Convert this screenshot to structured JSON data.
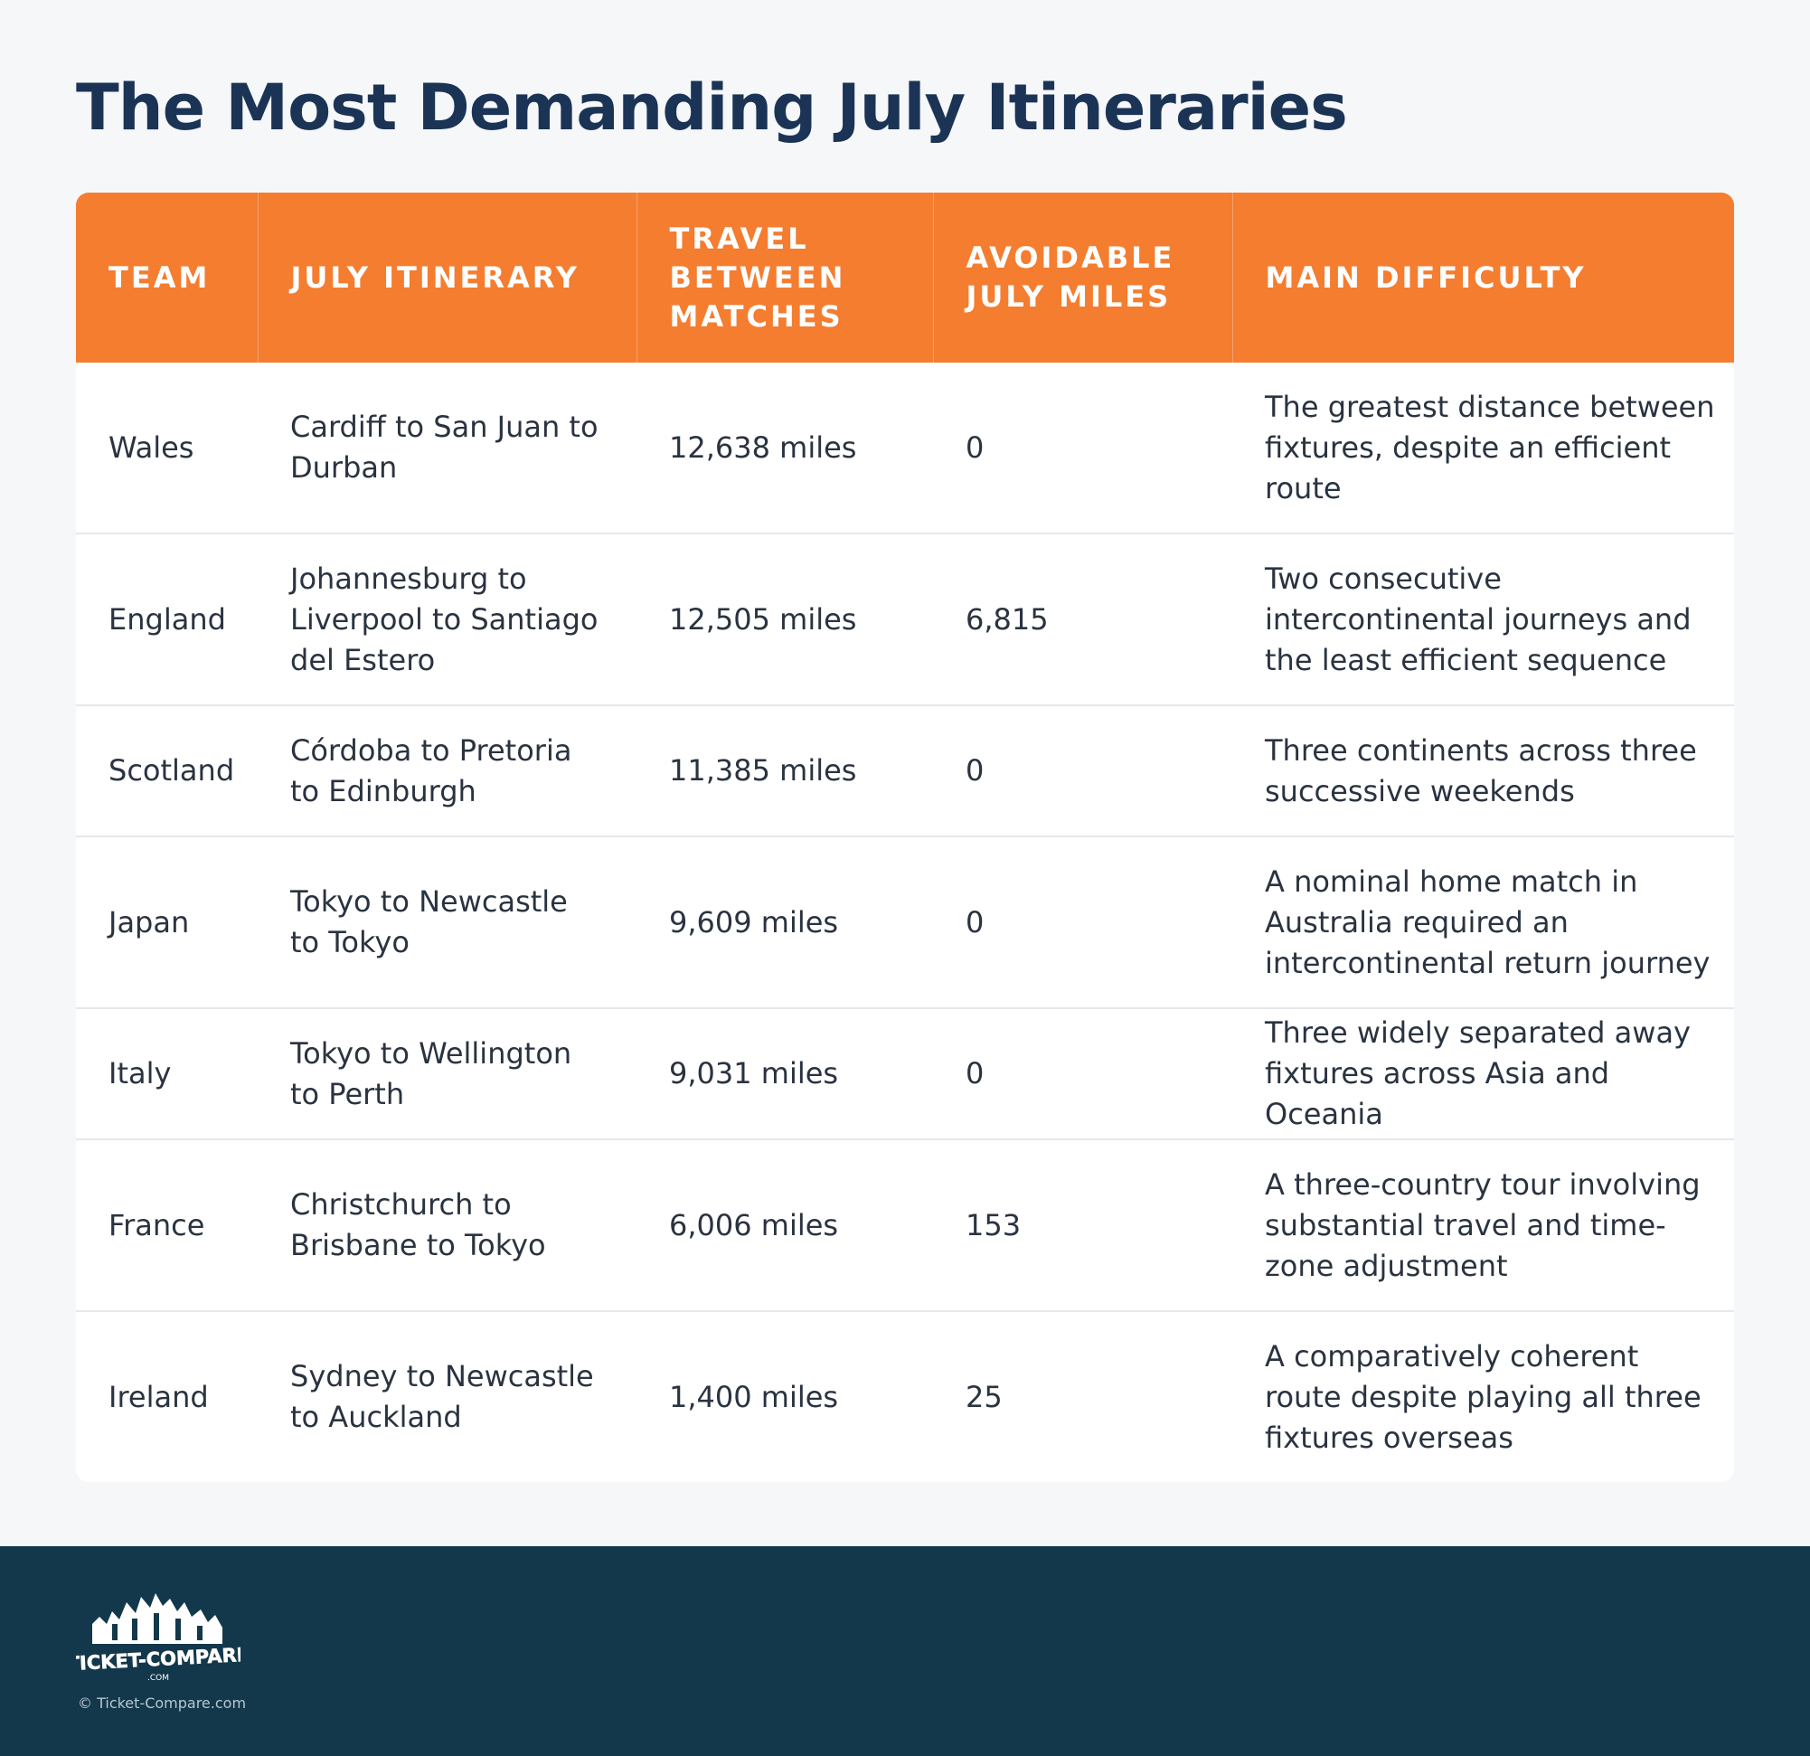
{
  "title": "The Most Demanding July Itineraries",
  "table": {
    "headers": [
      "TEAM",
      "JULY ITINERARY",
      "TRAVEL BETWEEN MATCHES",
      "AVOIDABLE JULY MILES",
      "MAIN DIFFICULTY"
    ],
    "rows": [
      {
        "team": "Wales",
        "itinerary": "Cardiff to San Juan to Durban",
        "travel": "12,638  miles",
        "avoidable": "0",
        "difficulty": "The greatest distance between fixtures, despite an efficient route"
      },
      {
        "team": "England",
        "itinerary": "Johannesburg to Liverpool to Santiago del Estero",
        "travel": "12,505  miles",
        "avoidable": "6,815",
        "difficulty": "Two consecutive intercontinental journeys and the least efficient sequence"
      },
      {
        "team": "Scotland",
        "itinerary": "Córdoba to Pretoria to Edinburgh",
        "travel": "11,385  miles",
        "avoidable": "0",
        "difficulty": "Three continents across three successive weekends"
      },
      {
        "team": "Japan",
        "itinerary": "Tokyo to Newcastle to Tokyo",
        "travel": "9,609 miles",
        "avoidable": "0",
        "difficulty": "A nominal home match in Australia required an intercontinental return journey"
      },
      {
        "team": "Italy",
        "itinerary": "Tokyo to Wellington to Perth",
        "travel": "9,031  miles",
        "avoidable": "0",
        "difficulty": "Three widely separated away fixtures across Asia and Oceania"
      },
      {
        "team": "France",
        "itinerary": "Christchurch to Brisbane to Tokyo",
        "travel": "6,006 miles",
        "avoidable": "153",
        "difficulty": "A three-country tour involving substantial travel and time-zone adjustment"
      },
      {
        "team": "Ireland",
        "itinerary": "Sydney to Newcastle to Auckland",
        "travel": "1,400  miles",
        "avoidable": "25",
        "difficulty": "A comparatively coherent route despite playing all three fixtures overseas"
      }
    ]
  },
  "footer": {
    "logo": {
      "text": "TICKET-COMPARE",
      "subtext": ".COM"
    },
    "copyright": "© Ticket-Compare.com"
  },
  "colors": {
    "title": "#1b3456",
    "header_bg": "#f47d30",
    "footer_bg": "#13384b",
    "page_bg": "#f6f7f9"
  }
}
